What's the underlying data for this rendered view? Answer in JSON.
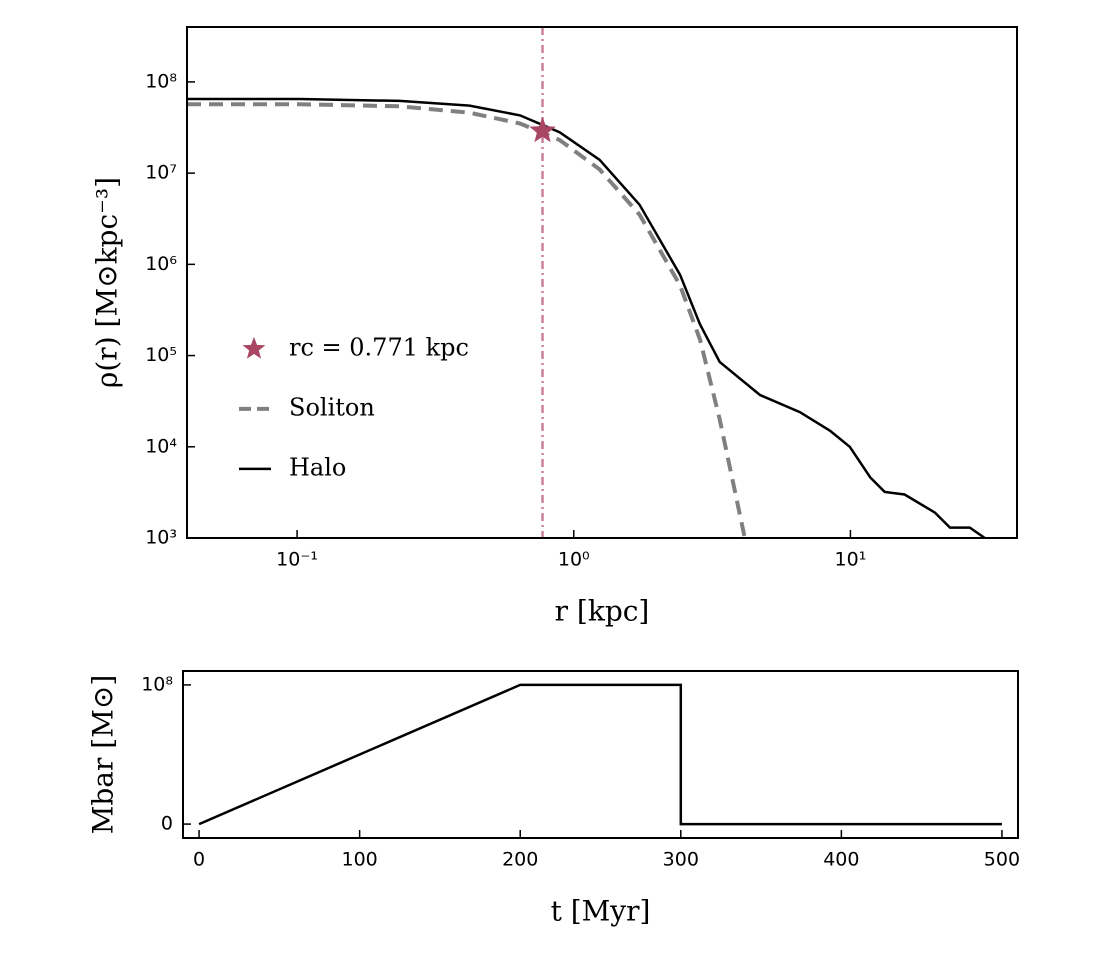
{
  "chart_data": [
    {
      "type": "line",
      "xlabel": "r [kpc]",
      "ylabel": "ρ(r) [M⊙kpc⁻³]",
      "xscale": "log",
      "yscale": "log",
      "xlim": [
        0.04,
        40
      ],
      "ylim": [
        1000,
        400000000
      ],
      "xticks": [
        {
          "value": 0.1,
          "label": "10⁻¹"
        },
        {
          "value": 1,
          "label": "10⁰"
        },
        {
          "value": 10,
          "label": "10¹"
        }
      ],
      "yticks": [
        {
          "value": 1000,
          "label": "10³"
        },
        {
          "value": 10000,
          "label": "10⁴"
        },
        {
          "value": 100000,
          "label": "10⁵"
        },
        {
          "value": 1000000,
          "label": "10⁶"
        },
        {
          "value": 10000000,
          "label": "10⁷"
        },
        {
          "value": 100000000,
          "label": "10⁸"
        }
      ],
      "legend": "center left",
      "markers": [
        {
          "name": "rc = 0.771 kpc",
          "x": 0.771,
          "y": 29000000,
          "color": "#a94664",
          "shape": "star"
        }
      ],
      "vlines": [
        {
          "x": 0.771,
          "color": "#c9809a",
          "style": "dashdot"
        }
      ],
      "series": [
        {
          "name": "Soliton",
          "color": "#808080",
          "style": "dashed",
          "x": [
            0.04,
            0.102,
            0.235,
            0.42,
            0.64,
            0.89,
            1.24,
            1.73,
            2.42,
            2.86,
            3.37,
            4.15
          ],
          "values": [
            57000000,
            57000000,
            54000000,
            46000000,
            35000000,
            23000000,
            11000000,
            3500000,
            590000,
            150000,
            20000,
            1000
          ]
        },
        {
          "name": "Halo",
          "color": "#000000",
          "style": "solid",
          "x": [
            0.04,
            0.102,
            0.235,
            0.42,
            0.64,
            0.89,
            1.24,
            1.73,
            2.42,
            2.86,
            3.37,
            4.71,
            6.56,
            8.43,
            9.95,
            11.8,
            13.3,
            15.7,
            20.2,
            22.9,
            27,
            30.6
          ],
          "values": [
            65000000,
            65000000,
            62000000,
            55000000,
            43000000,
            28000000,
            14000000,
            4500000,
            770000,
            220000,
            85000,
            37000,
            24000,
            15000,
            10000,
            4600,
            3200,
            3000,
            1900,
            1300,
            1300,
            1000
          ]
        }
      ]
    },
    {
      "type": "line",
      "xlabel": "t [Myr]",
      "ylabel": "Mbar [M⊙]",
      "xscale": "linear",
      "yscale": "linear",
      "xlim": [
        -10,
        510
      ],
      "ylim": [
        -10000000,
        110000000
      ],
      "xticks": [
        0,
        100,
        200,
        300,
        400,
        500
      ],
      "yticks": [
        0,
        {
          "value": 100000000,
          "label": "10⁸"
        }
      ],
      "series": [
        {
          "color": "#000000",
          "style": "solid",
          "x": [
            0,
            200,
            300,
            300,
            500
          ],
          "values": [
            0,
            100000000,
            100000000,
            0,
            0
          ]
        }
      ]
    }
  ]
}
